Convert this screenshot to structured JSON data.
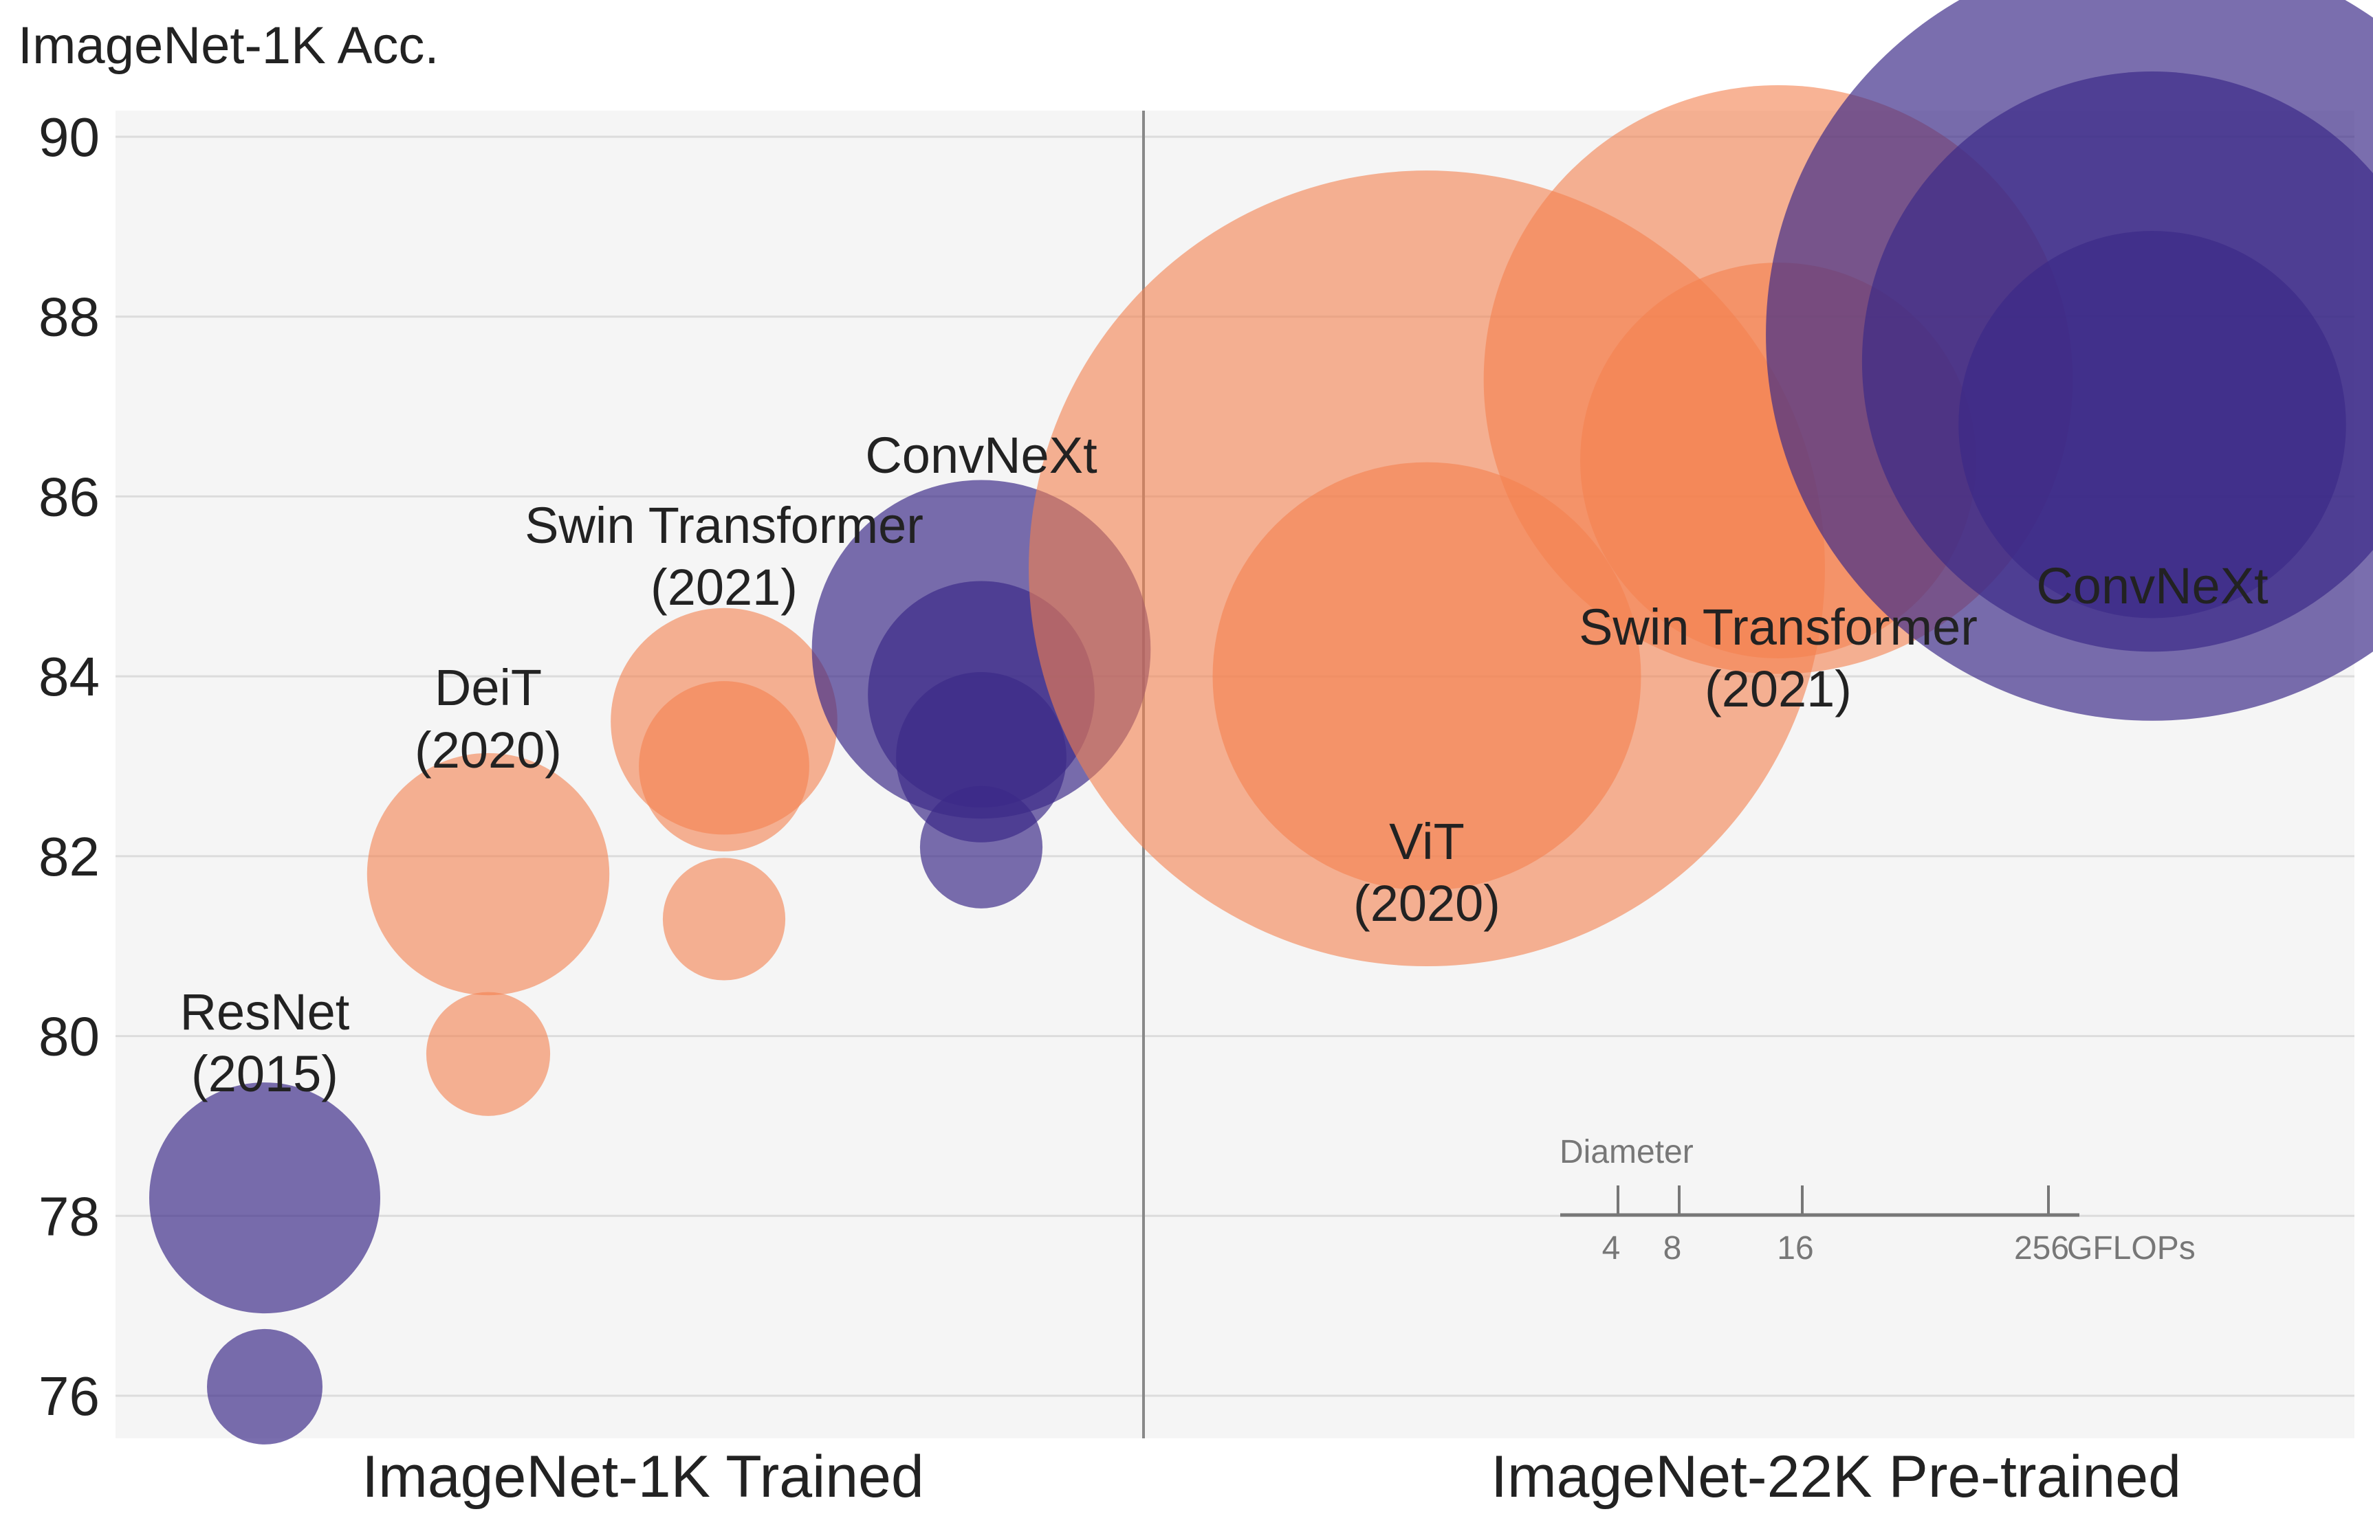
{
  "chart_data": {
    "type": "scatter",
    "title": "ImageNet-1K Acc.",
    "ylabel": "ImageNet-1K Acc.",
    "ylim": [
      75.5,
      90.3
    ],
    "yticks": [
      76,
      78,
      80,
      82,
      84,
      86,
      88,
      90
    ],
    "grid": true,
    "categories": [
      "ImageNet-1K Trained",
      "ImageNet-22K Pre-trained"
    ],
    "colors": {
      "convnet": "#3b2a87",
      "transformer": "#f4804f",
      "background": "#f5f5f5"
    },
    "groups": [
      {
        "category": "ImageNet-1K Trained",
        "label": [
          "ResNet",
          "(2015)"
        ],
        "family": "convnet",
        "points": [
          {
            "acc": 76.1,
            "gflops": 4
          },
          {
            "acc": 78.2,
            "gflops": 16
          }
        ]
      },
      {
        "category": "ImageNet-1K Trained",
        "label": [
          "DeiT",
          "(2020)"
        ],
        "family": "transformer",
        "points": [
          {
            "acc": 79.8,
            "gflops": 4.6
          },
          {
            "acc": 81.8,
            "gflops": 17.6
          }
        ]
      },
      {
        "category": "ImageNet-1K Trained",
        "label": [
          "Swin Transformer",
          "(2021)"
        ],
        "family": "transformer",
        "points": [
          {
            "acc": 81.3,
            "gflops": 4.5
          },
          {
            "acc": 83.0,
            "gflops": 8.7
          },
          {
            "acc": 83.5,
            "gflops": 15.4
          }
        ]
      },
      {
        "category": "ImageNet-1K Trained",
        "label": [
          "ConvNeXt"
        ],
        "family": "convnet",
        "points": [
          {
            "acc": 82.1,
            "gflops": 4.5
          },
          {
            "acc": 83.1,
            "gflops": 8.7
          },
          {
            "acc": 83.8,
            "gflops": 15.4
          },
          {
            "acc": 84.3,
            "gflops": 34.4
          }
        ]
      },
      {
        "category": "ImageNet-22K Pre-trained",
        "label": [
          "ViT",
          "(2020)"
        ],
        "family": "transformer",
        "points": [
          {
            "acc": 84.0,
            "gflops": 55
          },
          {
            "acc": 85.2,
            "gflops": 190
          }
        ]
      },
      {
        "category": "ImageNet-22K Pre-trained",
        "label": [
          "Swin Transformer",
          "(2021)"
        ],
        "family": "transformer",
        "points": [
          {
            "acc": 86.4,
            "gflops": 47
          },
          {
            "acc": 87.3,
            "gflops": 104
          }
        ]
      },
      {
        "category": "ImageNet-22K Pre-trained",
        "label": [
          "ConvNeXt"
        ],
        "family": "convnet",
        "points": [
          {
            "acc": 86.8,
            "gflops": 45
          },
          {
            "acc": 87.5,
            "gflops": 101
          },
          {
            "acc": 87.8,
            "gflops": 179
          }
        ]
      }
    ],
    "size_legend": {
      "title": "Diameter",
      "ticks": [
        "4",
        "8",
        "16",
        "256"
      ],
      "unit": "GFLOPs"
    }
  }
}
